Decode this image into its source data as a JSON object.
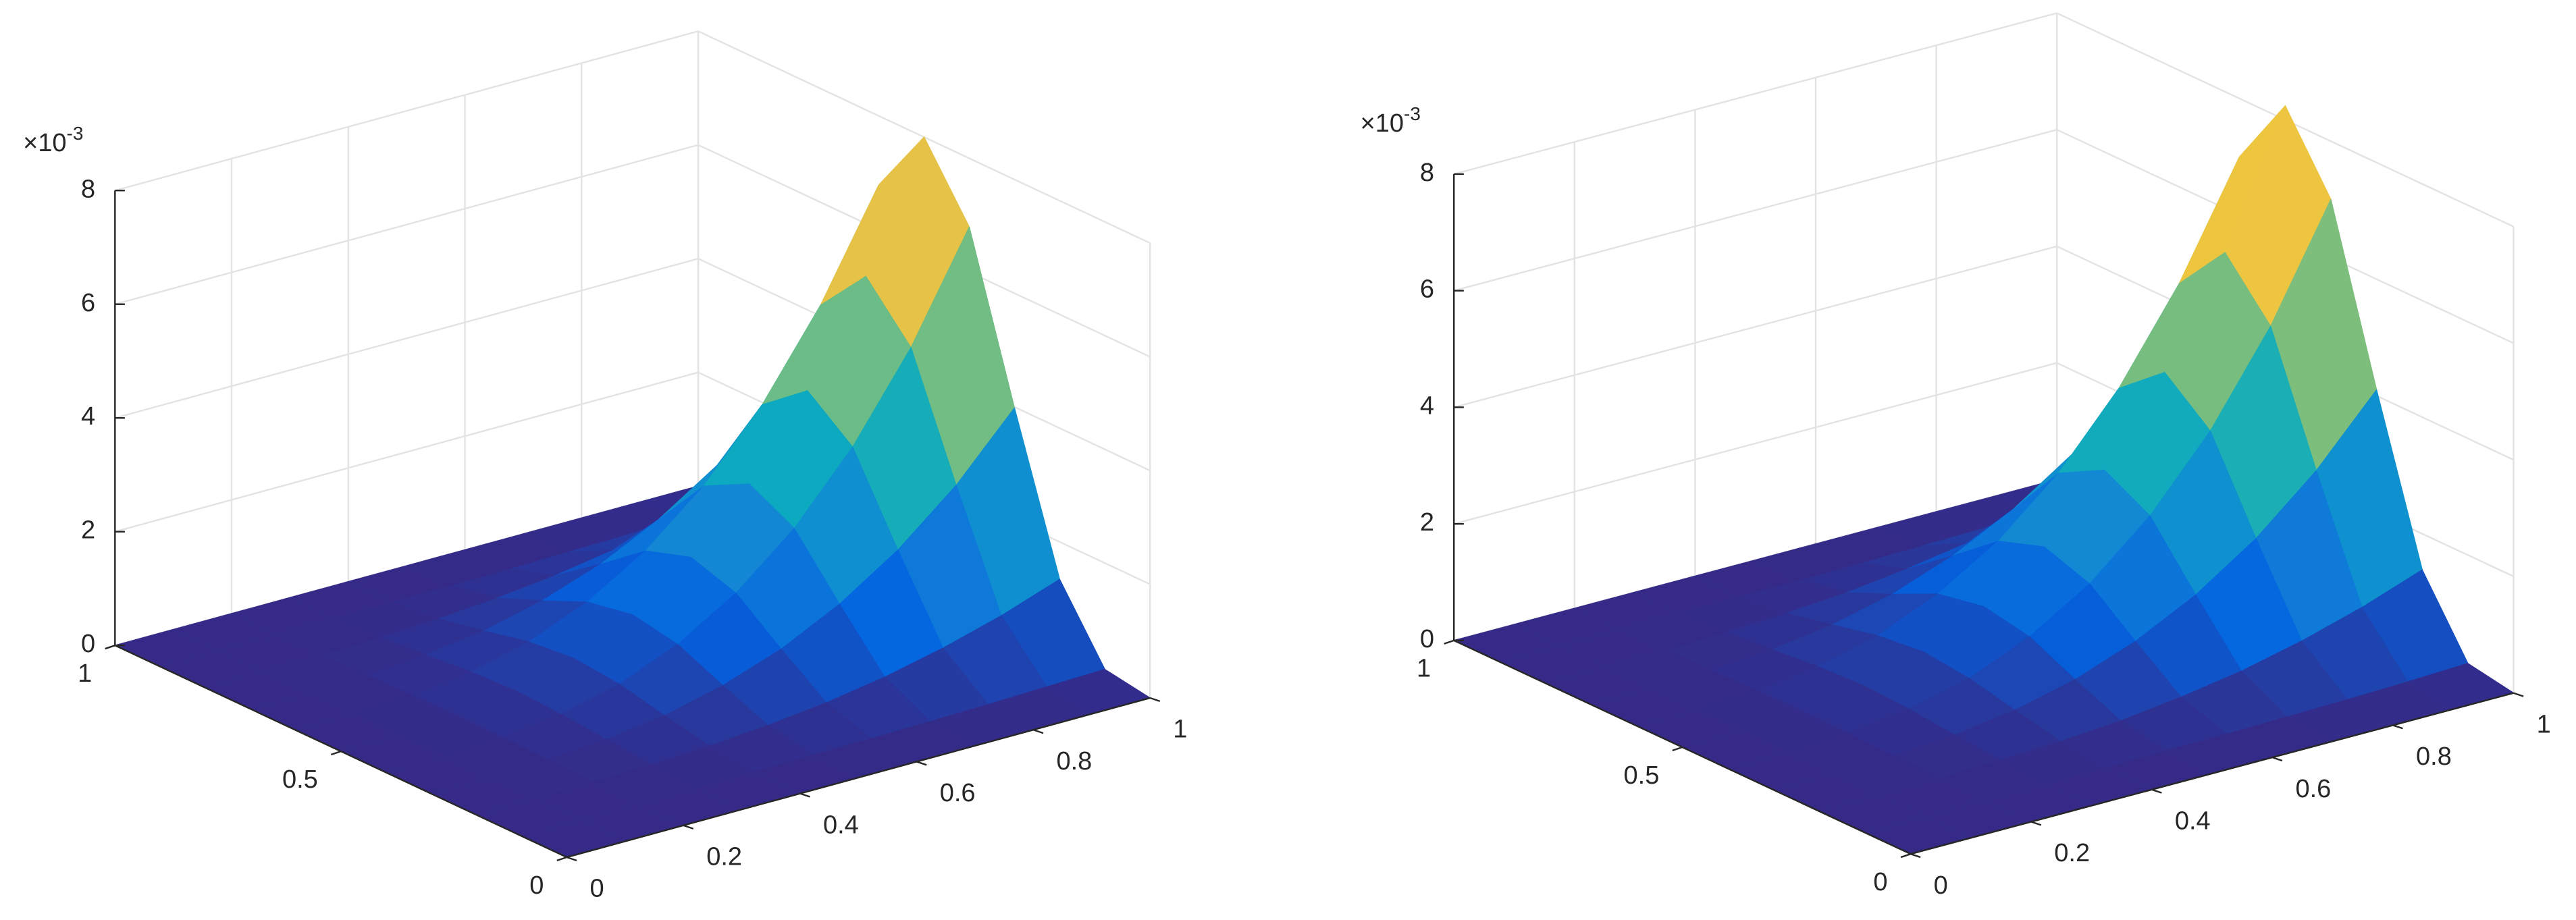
{
  "chart_data": [
    {
      "type": "surface",
      "x": [
        0,
        0.1,
        0.2,
        0.3,
        0.4,
        0.5,
        0.6,
        0.7,
        0.8,
        0.9,
        1
      ],
      "y": [
        0,
        0.1,
        0.2,
        0.3,
        0.4,
        0.5,
        0.6,
        0.7,
        0.8,
        0.9,
        1
      ],
      "z": [
        [
          0,
          0,
          0,
          0,
          0,
          0,
          0,
          0,
          0,
          0,
          0
        ],
        [
          0,
          0,
          0,
          0,
          0.01,
          0.02,
          0.03,
          0.05,
          0.07,
          0.1,
          0.13
        ],
        [
          0,
          0,
          0.01,
          0.04,
          0.09,
          0.17,
          0.29,
          0.46,
          0.69,
          0.98,
          1.34
        ],
        [
          0,
          0,
          0.03,
          0.11,
          0.25,
          0.5,
          0.86,
          1.37,
          2.04,
          2.9,
          3.98
        ],
        [
          0,
          0.01,
          0.05,
          0.18,
          0.43,
          0.85,
          1.47,
          2.33,
          3.48,
          4.95,
          6.79
        ],
        [
          0,
          0.01,
          0.06,
          0.22,
          0.51,
          1,
          1.73,
          2.74,
          4.1,
          5.83,
          8
        ],
        [
          0,
          0.01,
          0.05,
          0.18,
          0.43,
          0.85,
          1.47,
          2.33,
          3.48,
          4.95,
          6.79
        ],
        [
          0,
          0,
          0.03,
          0.11,
          0.25,
          0.5,
          0.86,
          1.37,
          2.04,
          2.9,
          3.98
        ],
        [
          0,
          0,
          0.01,
          0.04,
          0.09,
          0.17,
          0.29,
          0.46,
          0.69,
          0.98,
          1.34
        ],
        [
          0,
          0,
          0,
          0,
          0.01,
          0.02,
          0.03,
          0.05,
          0.07,
          0.1,
          0.13
        ],
        [
          0,
          0,
          0,
          0,
          0,
          0,
          0,
          0,
          0,
          0,
          0
        ]
      ],
      "xlim": [
        0,
        1
      ],
      "ylim": [
        0,
        1
      ],
      "zlim": [
        0,
        8
      ],
      "xticks": [
        0,
        0.2,
        0.4,
        0.6,
        0.8,
        1
      ],
      "yticks": [
        0,
        0.5,
        1
      ],
      "zticks": [
        0,
        2,
        4,
        6,
        8
      ],
      "z_multiplier": "×10",
      "z_exponent": "-3",
      "grid": true,
      "colormap": "parula"
    },
    {
      "type": "surface",
      "x": [
        0,
        0.1,
        0.2,
        0.3,
        0.4,
        0.5,
        0.6,
        0.7,
        0.8,
        0.9,
        1
      ],
      "y": [
        0,
        0.1,
        0.2,
        0.3,
        0.4,
        0.5,
        0.6,
        0.7,
        0.8,
        0.9,
        1
      ],
      "z": [
        [
          0,
          0,
          0,
          0,
          0,
          0,
          0,
          0,
          0,
          0,
          0
        ],
        [
          0,
          0,
          0,
          0,
          0.01,
          0.02,
          0.03,
          0.05,
          0.07,
          0.1,
          0.14
        ],
        [
          0,
          0,
          0.01,
          0.04,
          0.09,
          0.17,
          0.3,
          0.47,
          0.71,
          1.01,
          1.38
        ],
        [
          0,
          0,
          0.03,
          0.11,
          0.26,
          0.51,
          0.89,
          1.41,
          2.1,
          2.99,
          4.1
        ],
        [
          0,
          0.01,
          0.05,
          0.19,
          0.44,
          0.88,
          1.51,
          2.4,
          3.58,
          5.1,
          7
        ],
        [
          0,
          0.01,
          0.06,
          0.23,
          0.53,
          1.03,
          1.78,
          2.82,
          4.22,
          6,
          8.24
        ],
        [
          0,
          0.01,
          0.05,
          0.19,
          0.44,
          0.88,
          1.51,
          2.4,
          3.58,
          5.1,
          7
        ],
        [
          0,
          0,
          0.03,
          0.11,
          0.26,
          0.51,
          0.89,
          1.41,
          2.1,
          2.99,
          4.1
        ],
        [
          0,
          0,
          0.01,
          0.04,
          0.09,
          0.17,
          0.3,
          0.47,
          0.71,
          1.01,
          1.38
        ],
        [
          0,
          0,
          0,
          0,
          0.01,
          0.02,
          0.03,
          0.05,
          0.07,
          0.1,
          0.14
        ],
        [
          0,
          0,
          0,
          0,
          0,
          0,
          0,
          0,
          0,
          0,
          0
        ]
      ],
      "xlim": [
        0,
        1
      ],
      "ylim": [
        0,
        1
      ],
      "zlim": [
        0,
        8
      ],
      "xticks": [
        0,
        0.2,
        0.4,
        0.6,
        0.8,
        1
      ],
      "yticks": [
        0,
        0.5,
        1
      ],
      "zticks": [
        0,
        2,
        4,
        6,
        8
      ],
      "z_multiplier": "×10",
      "z_exponent": "-3",
      "grid": true,
      "colormap": "parula"
    }
  ]
}
